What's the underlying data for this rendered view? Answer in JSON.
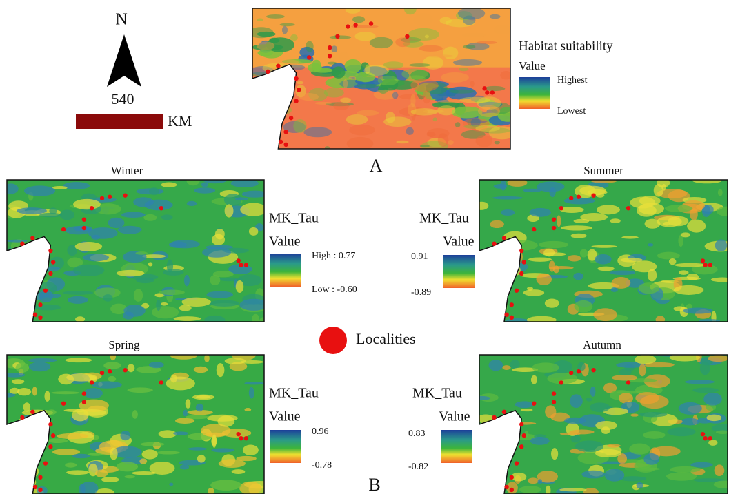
{
  "north": "N",
  "scale": {
    "distance": "540",
    "unit": "KM"
  },
  "habitat": {
    "label": "A",
    "legend": {
      "title": "Habitat suitability",
      "subtitle": "Value",
      "high": "Highest",
      "low": "Lowest"
    }
  },
  "seasons": [
    {
      "name": "Winter",
      "legend_title": "MK_Tau",
      "value_label": "Value",
      "high": "High : 0.77",
      "low": "Low : -0.60"
    },
    {
      "name": "Summer",
      "legend_title": "MK_Tau",
      "value_label": "Value",
      "high": "0.91",
      "low": "-0.89"
    },
    {
      "name": "Spring",
      "legend_title": "MK_Tau",
      "value_label": "Value",
      "high": "0.96",
      "low": "-0.78"
    },
    {
      "name": "Autumn",
      "legend_title": "MK_Tau",
      "value_label": "Value",
      "high": "0.83",
      "low": "-0.82"
    }
  ],
  "localities": "Localities",
  "panel_b": "B"
}
